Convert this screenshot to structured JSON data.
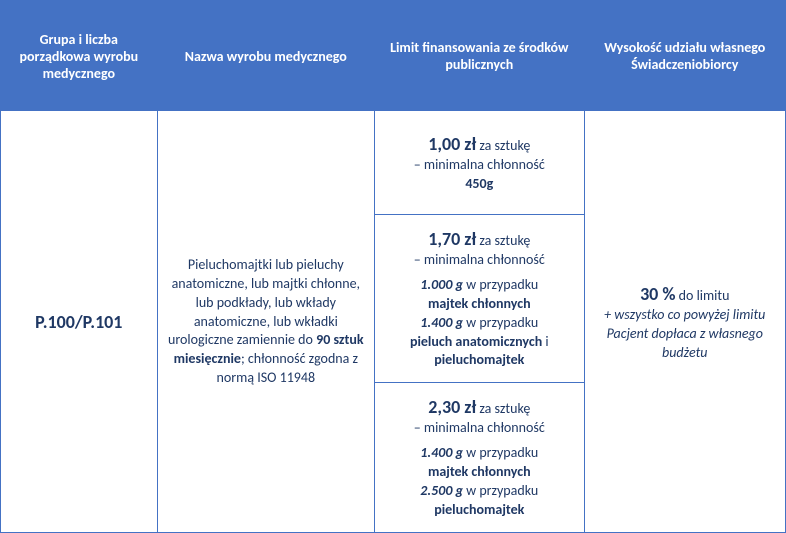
{
  "headers": {
    "col1": "Grupa i liczba porządkowa wyrobu medycznego",
    "col2": "Nazwa wyrobu medycznego",
    "col3": "Limit finansowania ze środków publicznych",
    "col4": "Wysokość udziału własnego Świadczeniobiorcy"
  },
  "group_code": "P.100/P.101",
  "product_desc": {
    "line1": "Pieluchomajtki lub pieluchy anatomiczne, lub majtki chłonne, lub podkłady, lub wkłady anatomiczne, lub wkładki urologiczne zamiennie do",
    "bold1": "90 sztuk miesięcznie",
    "sep": ";",
    "line2": "chłonność zgodna z normą ISO 11948"
  },
  "tiers": {
    "t1": {
      "price": "1,00 zł",
      "unit": " za sztukę",
      "sub": "– minimalna chłonność",
      "val": "450g"
    },
    "t2": {
      "price": "1,70 zł",
      "unit": " za sztukę",
      "sub": "– minimalna chłonność",
      "v1": "1.000 g",
      "t1a": " w przypadku",
      "b1": "majtek chłonnych",
      "v2": "1.400 g",
      "t2a": " w przypadku",
      "b2a": "pieluch anatomicznych",
      "and": " i",
      "b2b": "pieluchomajtek"
    },
    "t3": {
      "price": "2,30 zł",
      "unit": " za sztukę",
      "sub": "– minimalna chłonność",
      "v1": "1.400 g",
      "t1a": " w przypadku",
      "b1": "majtek chłonnych",
      "v2": "2.500 g",
      "t2a": " w przypadku",
      "b2": "pieluchomajtek"
    }
  },
  "copay": {
    "pct": "30 %",
    "pct_label": " do limitu",
    "note": "+ wszystko co powyżej limitu Pacjent dopłaca z własnego budżetu"
  }
}
